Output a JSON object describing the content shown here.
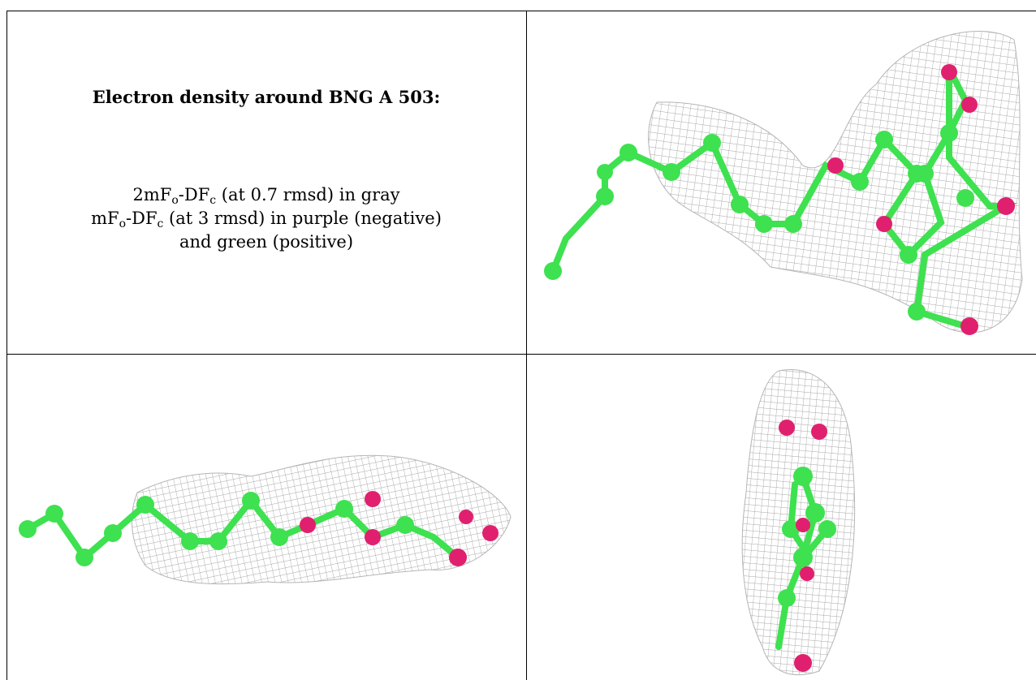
{
  "title": "Electron density around BNG A 503:",
  "legend_lines": [
    {
      "pre": "2mF",
      "sub1": "o",
      "mid": "-DF",
      "sub2": "c",
      "post": " (at 0.7 rmsd) in gray"
    },
    {
      "pre": "mF",
      "sub1": "o",
      "mid": "-DF",
      "sub2": "c",
      "post": " (at 3 rmsd) in purple (negative)"
    },
    {
      "pre": "",
      "sub1": "",
      "mid": "",
      "sub2": "",
      "post": "and green (positive)"
    }
  ],
  "colors": {
    "mesh": "#9a9a9a",
    "carbon": "#38e34c",
    "oxygen": "#e0206e",
    "border": "#000000"
  }
}
